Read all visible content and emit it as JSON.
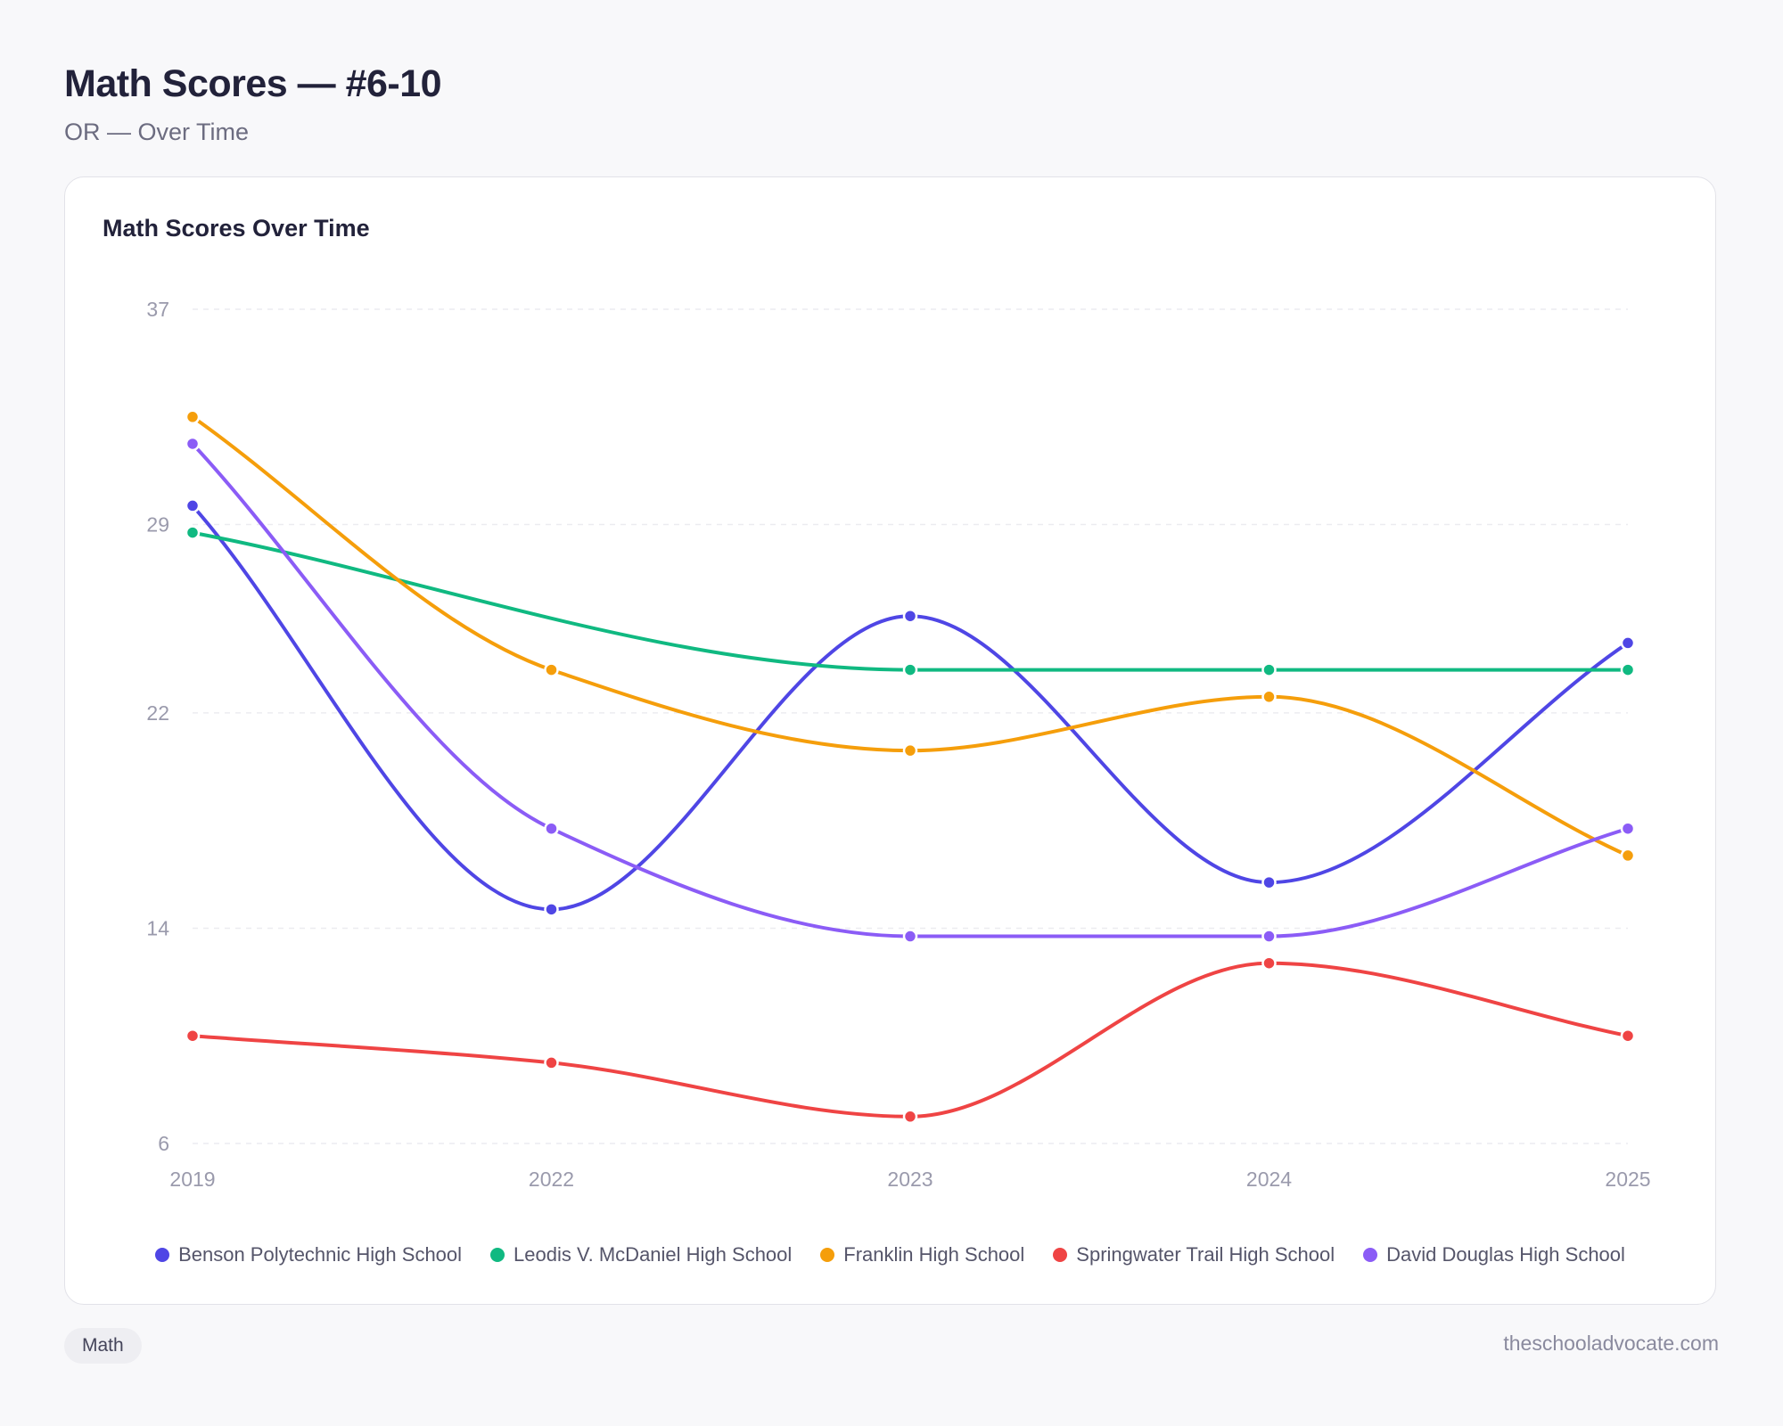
{
  "header": {
    "title": "Math Scores — #6-10",
    "subtitle": "OR — Over Time"
  },
  "card": {
    "title": "Math Scores Over Time"
  },
  "footer": {
    "tag": "Math",
    "site": "theschooladvocate.com"
  },
  "chart_data": {
    "type": "line",
    "title": "Math Scores Over Time",
    "xlabel": "",
    "ylabel": "",
    "categories": [
      "2019",
      "2022",
      "2023",
      "2024",
      "2025"
    ],
    "yticks": [
      6,
      14,
      22,
      29,
      37
    ],
    "ylim": [
      6,
      37
    ],
    "grid": true,
    "legend_position": "bottom",
    "series": [
      {
        "name": "Benson Polytechnic High School",
        "color": "#4f46e5",
        "values": [
          29.7,
          14.7,
          25.6,
          15.7,
          24.6
        ]
      },
      {
        "name": "Leodis V. McDaniel High School",
        "color": "#10b981",
        "values": [
          28.7,
          null,
          23.6,
          23.6,
          23.6
        ]
      },
      {
        "name": "Franklin High School",
        "color": "#f59e0b",
        "values": [
          33.0,
          23.6,
          20.6,
          22.6,
          16.7
        ]
      },
      {
        "name": "Springwater Trail High School",
        "color": "#ef4444",
        "values": [
          10.0,
          9.0,
          7.0,
          12.7,
          10.0
        ]
      },
      {
        "name": "David Douglas High School",
        "color": "#8b5cf6",
        "values": [
          32.0,
          17.7,
          13.7,
          13.7,
          17.7
        ]
      }
    ]
  }
}
